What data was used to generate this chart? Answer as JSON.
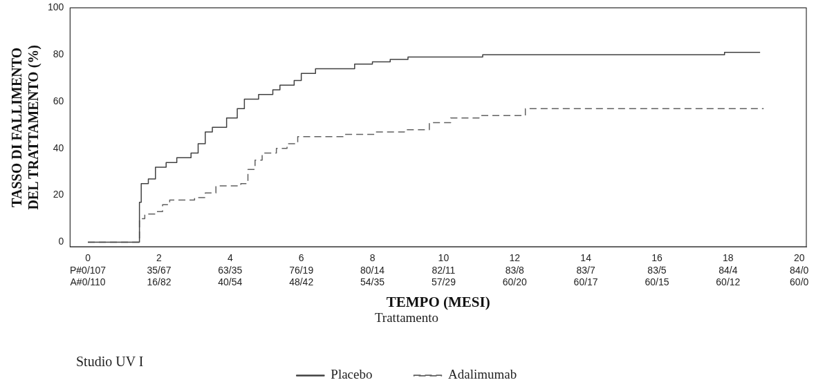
{
  "chart_data": {
    "type": "step",
    "xlabel": "TEMPO (MESI)",
    "ylabel": "TASSO DI FALLIMENTO DEL TRATTAMENTO (%)",
    "legend_title": "Trattamento",
    "legend": "bottom",
    "marker": "none",
    "grid": false,
    "xlim": [
      -0.5,
      20.2
    ],
    "ylim": [
      -2,
      100
    ],
    "xticks": [
      0,
      2,
      4,
      6,
      8,
      10,
      12,
      14,
      16,
      18,
      20
    ],
    "yticks": [
      0,
      20,
      40,
      60,
      80,
      100
    ],
    "annotations": [
      "Studio UV I",
      "P#0/107\nA#0/110",
      "35/67\n16/82",
      "63/35\n40/54",
      "76/19\n48/42",
      "80/14\n54/35",
      "82/11\n57/29",
      "83/8\n60/20",
      "83/7\n60/17",
      "83/5\n60/15",
      "84/4\n60/12",
      "84/0\n60/0"
    ],
    "series": [
      {
        "name": "Placebo",
        "color": "#404040",
        "line_style": "solid",
        "x": [
          0,
          1.4,
          1.45,
          1.5,
          1.7,
          1.9,
          2.2,
          2.5,
          2.9,
          3.1,
          3.3,
          3.5,
          3.9,
          4.2,
          4.4,
          4.8,
          5.2,
          5.4,
          5.8,
          6.0,
          6.4,
          7.5,
          8.0,
          8.5,
          9.0,
          11.1,
          17.9,
          18.9
        ],
        "values": [
          0,
          0,
          17,
          25,
          27,
          32,
          34,
          36,
          38,
          42,
          47,
          49,
          53,
          57,
          61,
          63,
          65,
          67,
          69,
          72,
          74,
          76,
          77,
          78,
          79,
          80,
          81,
          81
        ]
      },
      {
        "name": "Adalimumab",
        "color": "#606060",
        "line_style": "dashed",
        "x": [
          0,
          1.4,
          1.45,
          1.6,
          1.9,
          2.1,
          2.3,
          3.0,
          3.3,
          3.6,
          4.3,
          4.5,
          4.7,
          4.9,
          5.3,
          5.6,
          5.9,
          7.2,
          8.1,
          8.9,
          9.6,
          10.2,
          11.0,
          12.3,
          19.0
        ],
        "values": [
          0,
          0,
          10,
          12,
          13,
          16,
          18,
          19,
          21,
          24,
          25,
          31,
          35,
          38,
          40,
          42,
          45,
          46,
          47,
          48,
          51,
          53,
          54,
          57,
          57
        ]
      }
    ]
  }
}
